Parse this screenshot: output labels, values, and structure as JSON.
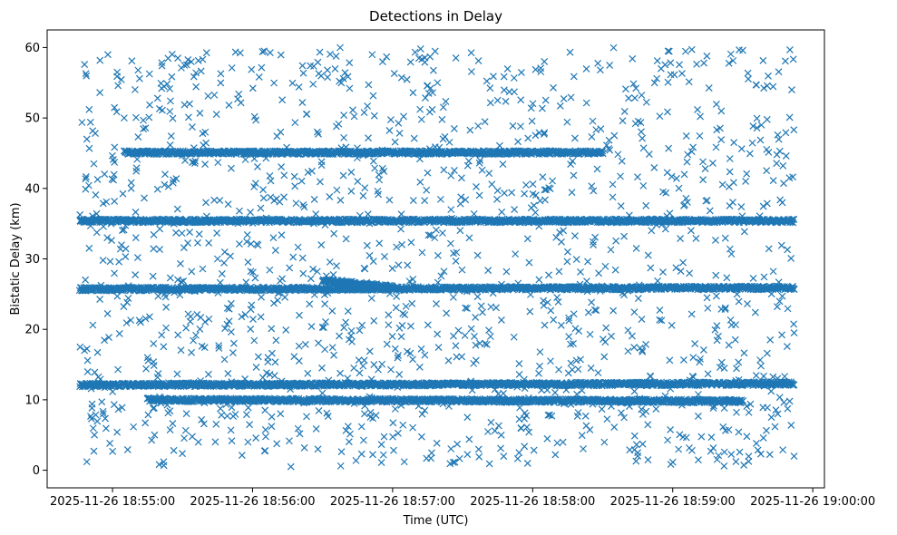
{
  "chart_data": {
    "type": "scatter",
    "title": "Detections in Delay",
    "xlabel": "Time (UTC)",
    "ylabel": "Bistatic Delay (km)",
    "marker": "x",
    "color": "#1f77b4",
    "xlim": [
      "2025-11-26 18:54:32",
      "2025-11-26 19:00:05"
    ],
    "ylim": [
      -2.5,
      62.5
    ],
    "x_ticks": [
      "2025-11-26 18:55:00",
      "2025-11-26 18:56:00",
      "2025-11-26 18:57:00",
      "2025-11-26 18:58:00",
      "2025-11-26 18:59:00",
      "2025-11-26 19:00:00"
    ],
    "y_ticks": [
      0,
      10,
      20,
      30,
      40,
      50,
      60
    ],
    "grid": false,
    "legend": "none",
    "x_range_observed": [
      "2025-11-26 18:54:46",
      "2025-11-26 18:59:52"
    ],
    "tracks": [
      {
        "y_start": 35.4,
        "y_end": 35.4,
        "x_start": "2025-11-26 18:54:46",
        "x_end": "2025-11-26 18:59:52"
      },
      {
        "y_start": 25.7,
        "y_end": 25.9,
        "x_start": "2025-11-26 18:54:46",
        "x_end": "2025-11-26 18:59:52"
      },
      {
        "y_start": 12.1,
        "y_end": 12.3,
        "x_start": "2025-11-26 18:54:46",
        "x_end": "2025-11-26 18:59:52"
      },
      {
        "y_start": 45.1,
        "y_end": 45.1,
        "x_start": "2025-11-26 18:55:05",
        "x_end": "2025-11-26 18:58:30"
      },
      {
        "y_start": 10.0,
        "y_end": 9.8,
        "x_start": "2025-11-26 18:55:15",
        "x_end": "2025-11-26 18:59:30"
      },
      {
        "y_start": 27.0,
        "y_end": 26.0,
        "x_start": "2025-11-26 18:56:30",
        "x_end": "2025-11-26 18:57:00"
      }
    ],
    "points": [
      {
        "x": "2025-11-26 18:54:48",
        "y": 57.6
      },
      {
        "x": "2025-11-26 18:54:50",
        "y": 51.2
      },
      {
        "x": "2025-11-26 18:54:49",
        "y": 47.0
      },
      {
        "x": "2025-11-26 18:54:52",
        "y": 43.5
      },
      {
        "x": "2025-11-26 18:54:50",
        "y": 31.5
      },
      {
        "x": "2025-11-26 18:54:48",
        "y": 17.0
      },
      {
        "x": "2025-11-26 18:54:51",
        "y": 7.3
      },
      {
        "x": "2025-11-26 18:54:52",
        "y": 2.7
      },
      {
        "x": "2025-11-26 18:54:58",
        "y": 59.0
      },
      {
        "x": "2025-11-26 18:55:02",
        "y": 56.5
      },
      {
        "x": "2025-11-26 18:55:05",
        "y": 50.0
      },
      {
        "x": "2025-11-26 18:55:08",
        "y": 40.0
      },
      {
        "x": "2025-11-26 18:55:10",
        "y": 33.0
      },
      {
        "x": "2025-11-26 18:55:12",
        "y": 21.0
      },
      {
        "x": "2025-11-26 18:55:15",
        "y": 16.0
      },
      {
        "x": "2025-11-26 18:55:18",
        "y": 5.0
      },
      {
        "x": "2025-11-26 18:55:20",
        "y": 0.8
      },
      {
        "x": "2025-11-26 18:55:28",
        "y": 58.5
      },
      {
        "x": "2025-11-26 18:55:33",
        "y": 52.0
      },
      {
        "x": "2025-11-26 18:55:40",
        "y": 38.0
      },
      {
        "x": "2025-11-26 18:55:45",
        "y": 30.0
      },
      {
        "x": "2025-11-26 18:55:52",
        "y": 18.0
      },
      {
        "x": "2025-11-26 18:55:58",
        "y": 4.0
      },
      {
        "x": "2025-11-26 18:56:05",
        "y": 59.5
      },
      {
        "x": "2025-11-26 18:56:12",
        "y": 48.0
      },
      {
        "x": "2025-11-26 18:56:20",
        "y": 22.0
      },
      {
        "x": "2025-11-26 18:56:28",
        "y": 3.0
      },
      {
        "x": "2025-11-26 18:56:38",
        "y": 55.0
      },
      {
        "x": "2025-11-26 18:56:45",
        "y": 41.0
      },
      {
        "x": "2025-11-26 18:56:52",
        "y": 15.0
      },
      {
        "x": "2025-11-26 18:57:05",
        "y": 1.2
      },
      {
        "x": "2025-11-26 18:57:12",
        "y": 59.8
      },
      {
        "x": "2025-11-26 18:57:25",
        "y": 37.0
      },
      {
        "x": "2025-11-26 18:57:35",
        "y": 19.0
      },
      {
        "x": "2025-11-26 18:57:45",
        "y": 52.5
      },
      {
        "x": "2025-11-26 18:57:55",
        "y": 6.0
      },
      {
        "x": "2025-11-26 18:58:05",
        "y": 58.0
      },
      {
        "x": "2025-11-26 18:58:15",
        "y": 31.0
      },
      {
        "x": "2025-11-26 18:58:25",
        "y": 14.5
      },
      {
        "x": "2025-11-26 18:58:35",
        "y": 47.5
      },
      {
        "x": "2025-11-26 18:58:45",
        "y": 2.5
      },
      {
        "x": "2025-11-26 18:58:55",
        "y": 57.0
      },
      {
        "x": "2025-11-26 18:59:05",
        "y": 42.0
      },
      {
        "x": "2025-11-26 18:59:15",
        "y": 23.0
      },
      {
        "x": "2025-11-26 18:59:22",
        "y": 0.6
      },
      {
        "x": "2025-11-26 18:59:30",
        "y": 59.6
      },
      {
        "x": "2025-11-26 18:59:38",
        "y": 49.0
      },
      {
        "x": "2025-11-26 18:59:45",
        "y": 8.0
      },
      {
        "x": "2025-11-26 18:59:50",
        "y": 41.5
      },
      {
        "x": "2025-11-26 18:59:51",
        "y": 54.0
      },
      {
        "x": "2025-11-26 18:59:52",
        "y": 19.5
      },
      {
        "x": "2025-11-26 18:59:52",
        "y": 2.0
      }
    ]
  }
}
